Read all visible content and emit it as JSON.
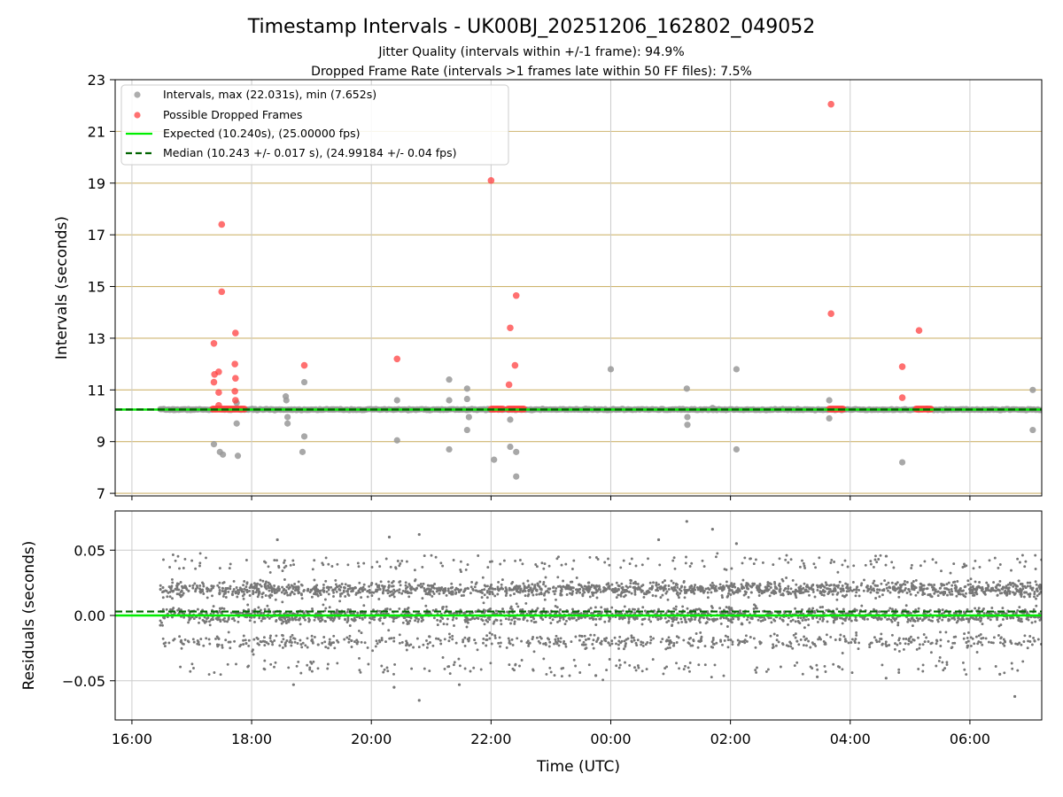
{
  "chart_data": [
    {
      "type": "scatter",
      "title": "Timestamp Intervals - UK00BJ_20251206_162802_049052",
      "subtitle_lines": [
        "Jitter Quality (intervals within +/-1 frame): 94.9%",
        "Dropped Frame Rate (intervals >1 frames late within 50 FF files): 7.5%"
      ],
      "xlabel": "",
      "ylabel": "Intervals (seconds)",
      "x_unit": "hours since 16:00 UTC",
      "xlim": [
        -0.28,
        15.2
      ],
      "ylim": [
        6.9,
        23
      ],
      "yticks": [
        7,
        9,
        11,
        13,
        15,
        17,
        19,
        21,
        23
      ],
      "xtick_hours": [
        0,
        2,
        4,
        6,
        8,
        10,
        12,
        14
      ],
      "xtick_labels": [
        "16:00",
        "18:00",
        "20:00",
        "22:00",
        "00:00",
        "02:00",
        "04:00",
        "06:00"
      ],
      "grid": true,
      "legend_position": "upper-left",
      "series": [
        {
          "name": "Intervals, max (22.031s), min (7.652s)",
          "color": "#999999",
          "baseline_value": 10.24,
          "baseline_x_range": [
            0.47,
            15.2
          ],
          "points": [
            [
              1.37,
              8.9
            ],
            [
              1.47,
              8.6
            ],
            [
              1.52,
              8.5
            ],
            [
              1.75,
              9.7
            ],
            [
              1.75,
              10.5
            ],
            [
              1.77,
              8.45
            ],
            [
              2.57,
              10.75
            ],
            [
              2.58,
              10.6
            ],
            [
              2.6,
              9.95
            ],
            [
              2.6,
              9.7
            ],
            [
              2.88,
              11.3
            ],
            [
              2.88,
              9.2
            ],
            [
              2.85,
              8.6
            ],
            [
              4.43,
              10.6
            ],
            [
              4.43,
              9.05
            ],
            [
              5.3,
              11.4
            ],
            [
              5.3,
              10.6
            ],
            [
              5.3,
              8.7
            ],
            [
              5.6,
              11.05
            ],
            [
              5.6,
              10.65
            ],
            [
              5.63,
              9.95
            ],
            [
              5.6,
              9.45
            ],
            [
              6.05,
              8.3
            ],
            [
              6.32,
              9.85
            ],
            [
              6.32,
              8.8
            ],
            [
              6.42,
              8.6
            ],
            [
              6.42,
              7.65
            ],
            [
              8.0,
              11.8
            ],
            [
              9.27,
              11.05
            ],
            [
              9.28,
              9.95
            ],
            [
              9.28,
              9.65
            ],
            [
              9.7,
              10.3
            ],
            [
              10.1,
              11.8
            ],
            [
              10.1,
              8.7
            ],
            [
              11.65,
              10.6
            ],
            [
              11.65,
              9.9
            ],
            [
              12.87,
              8.2
            ],
            [
              15.05,
              11.0
            ],
            [
              15.05,
              9.45
            ]
          ]
        },
        {
          "name": "Possible Dropped Frames",
          "color": "#ff4040",
          "points": [
            [
              1.37,
              12.8
            ],
            [
              1.38,
              11.6
            ],
            [
              1.37,
              11.3
            ],
            [
              1.45,
              11.7
            ],
            [
              1.45,
              10.9
            ],
            [
              1.45,
              10.4
            ],
            [
              1.5,
              17.4
            ],
            [
              1.5,
              14.8
            ],
            [
              1.73,
              13.2
            ],
            [
              1.72,
              12.0
            ],
            [
              1.73,
              11.45
            ],
            [
              1.72,
              10.95
            ],
            [
              1.73,
              10.6
            ],
            [
              2.88,
              11.95
            ],
            [
              4.43,
              12.2
            ],
            [
              6.0,
              19.1
            ],
            [
              6.3,
              11.2
            ],
            [
              6.32,
              13.4
            ],
            [
              6.4,
              11.95
            ],
            [
              6.42,
              14.65
            ],
            [
              11.68,
              22.05
            ],
            [
              11.68,
              13.95
            ],
            [
              12.87,
              11.9
            ],
            [
              12.87,
              10.7
            ],
            [
              13.15,
              13.3
            ]
          ],
          "clusters_at_baseline": [
            [
              1.35,
              1.88
            ],
            [
              6.0,
              6.2
            ],
            [
              6.28,
              6.55
            ],
            [
              11.65,
              11.88
            ],
            [
              13.1,
              13.35
            ]
          ]
        },
        {
          "name": "Expected (10.240s), (25.00000 fps)",
          "color": "#00ee00",
          "value": 10.24
        },
        {
          "name": "Median (10.243 +/- 0.017 s), (24.99184 +/- 0.04 fps)",
          "color": "#006400",
          "value": 10.243
        }
      ]
    },
    {
      "type": "scatter",
      "title": "",
      "xlabel": "Time (UTC)",
      "ylabel": "Residuals (seconds)",
      "x_unit": "hours since 16:00 UTC",
      "xlim": [
        -0.28,
        15.2
      ],
      "ylim": [
        -0.08,
        0.08
      ],
      "yticks": [
        -0.05,
        0.0,
        0.05
      ],
      "ytick_labels": [
        "−0.05",
        "0.00",
        "0.05"
      ],
      "xtick_hours": [
        0,
        2,
        4,
        6,
        8,
        10,
        12,
        14
      ],
      "xtick_labels": [
        "16:00",
        "18:00",
        "20:00",
        "22:00",
        "00:00",
        "02:00",
        "04:00",
        "06:00"
      ],
      "grid": true,
      "series": [
        {
          "name": "Residuals",
          "color": "#777777",
          "x_range": [
            0.47,
            15.2
          ],
          "bands": [
            0.02,
            0.0,
            -0.02
          ],
          "band_spread": 0.003,
          "outer_levels": [
            0.04,
            -0.04
          ],
          "point_count": 4200,
          "outliers": [
            [
              2.43,
              0.058
            ],
            [
              2.7,
              -0.053
            ],
            [
              4.3,
              0.06
            ],
            [
              4.8,
              0.062
            ],
            [
              4.38,
              -0.055
            ],
            [
              4.8,
              -0.065
            ],
            [
              5.47,
              -0.053
            ],
            [
              7.75,
              -0.046
            ],
            [
              8.8,
              0.058
            ],
            [
              9.27,
              0.072
            ],
            [
              9.7,
              0.066
            ],
            [
              10.1,
              0.055
            ],
            [
              11.45,
              -0.047
            ],
            [
              12.6,
              -0.048
            ],
            [
              14.5,
              -0.045
            ],
            [
              14.75,
              -0.062
            ]
          ]
        },
        {
          "name": "Expected",
          "color": "#00ee00",
          "value": 0.0
        },
        {
          "name": "Median",
          "color": "#006400",
          "value": 0.003
        }
      ]
    }
  ]
}
